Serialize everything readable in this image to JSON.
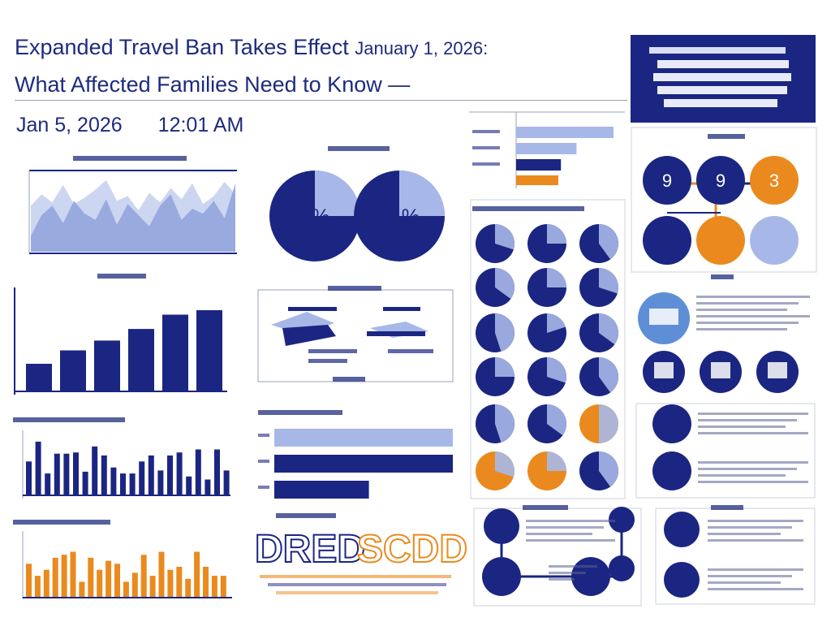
{
  "headline": {
    "line1": "Expanded Travel Ban Takes Effect",
    "date": "January 1, 2026:",
    "line2": "What Affected Families Need to Know —"
  },
  "dateline": {
    "date": "Jan 5, 2026",
    "time": "12:01 AM"
  },
  "colors": {
    "navy": "#1b2682",
    "light": "#a7b8e8",
    "orange": "#ea8a1e",
    "grey": "#cfd2dc"
  },
  "chart_data": [
    {
      "type": "area",
      "series": [
        {
          "values": [
            58,
            72,
            62,
            84,
            60,
            68,
            78,
            90,
            64,
            70,
            52,
            74,
            62,
            80,
            66,
            86,
            60,
            70,
            88,
            72
          ]
        },
        {
          "values": [
            20,
            46,
            58,
            36,
            64,
            48,
            40,
            66,
            34,
            60,
            46,
            32,
            58,
            72,
            40,
            54,
            48,
            64,
            42,
            86
          ]
        }
      ]
    },
    {
      "type": "pie",
      "slices": [
        {
          "label": "5%",
          "value": 25
        },
        {
          "label": "34%",
          "value": 25
        }
      ]
    },
    {
      "type": "bar",
      "values": [
        30,
        45,
        56,
        69,
        85,
        90
      ],
      "ylim": [
        0,
        100
      ]
    },
    {
      "type": "bar",
      "values": [
        55,
        88,
        35,
        68,
        68,
        70,
        38,
        80,
        65,
        45,
        35,
        35,
        55,
        65,
        40,
        65,
        70,
        30,
        75,
        25,
        75,
        40
      ],
      "ylim": [
        0,
        100
      ]
    },
    {
      "type": "bar",
      "values": [
        55,
        35,
        45,
        65,
        70,
        75,
        25,
        65,
        45,
        60,
        55,
        25,
        40,
        70,
        35,
        75,
        45,
        50,
        30,
        75,
        50,
        35,
        35
      ],
      "ylim": [
        0,
        100
      ]
    },
    {
      "type": "bar",
      "orientation": "horizontal",
      "values": [
        100,
        100,
        53
      ]
    },
    {
      "type": "bar",
      "orientation": "horizontal",
      "values": [
        100,
        62,
        46
      ]
    },
    {
      "type": "pie",
      "labels": [
        "9",
        ""
      ],
      "slices_per_circle": [
        30,
        25,
        40,
        35,
        25,
        30,
        45,
        20,
        35,
        25,
        30,
        40,
        45,
        35,
        50
      ]
    }
  ]
}
